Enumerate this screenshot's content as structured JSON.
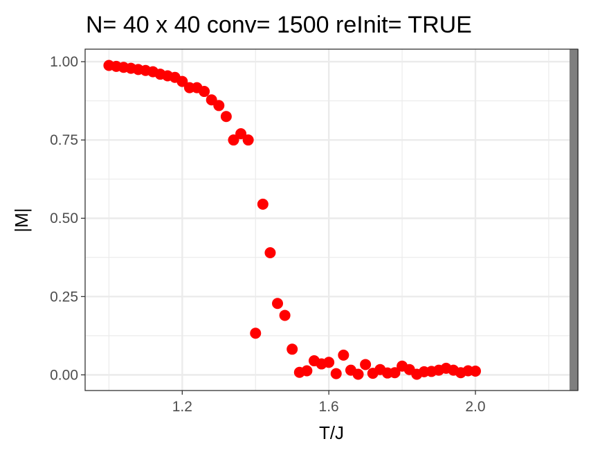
{
  "chart_data": {
    "type": "scatter",
    "title": "N= 40 x 40  conv= 1500  reInit= TRUE",
    "xlabel": "T/J",
    "ylabel": "|M|",
    "xlim": [
      0.935,
      2.2795
    ],
    "ylim": [
      -0.05,
      1.04
    ],
    "xticks": [
      {
        "value": 1.2,
        "label": "1.2"
      },
      {
        "value": 1.6,
        "label": "1.6"
      },
      {
        "value": 2.0,
        "label": "2.0"
      }
    ],
    "x_minor_gridlines": [
      1.0,
      1.4,
      1.8,
      2.2
    ],
    "yticks": [
      {
        "value": 0.0,
        "label": "0.00"
      },
      {
        "value": 0.25,
        "label": "0.25"
      },
      {
        "value": 0.5,
        "label": "0.50"
      },
      {
        "value": 0.75,
        "label": "0.75"
      },
      {
        "value": 1.0,
        "label": "1.00"
      }
    ],
    "y_minor_gridlines": [
      0.125,
      0.375,
      0.625,
      0.875
    ],
    "grid": true,
    "point_color": "#ff0000",
    "vline": {
      "x": 2.269,
      "color": "#7f7f7f"
    },
    "x": [
      1.0,
      1.02,
      1.04,
      1.06,
      1.08,
      1.1,
      1.12,
      1.14,
      1.16,
      1.18,
      1.2,
      1.22,
      1.24,
      1.26,
      1.28,
      1.3,
      1.32,
      1.34,
      1.36,
      1.38,
      1.4,
      1.42,
      1.44,
      1.46,
      1.48,
      1.5,
      1.52,
      1.54,
      1.56,
      1.58,
      1.6,
      1.62,
      1.64,
      1.66,
      1.68,
      1.7,
      1.72,
      1.74,
      1.76,
      1.78,
      1.8,
      1.82,
      1.84,
      1.86,
      1.88,
      1.9,
      1.92,
      1.94,
      1.96,
      1.98,
      2.0
    ],
    "y": [
      0.988,
      0.985,
      0.982,
      0.979,
      0.975,
      0.972,
      0.968,
      0.96,
      0.955,
      0.95,
      0.937,
      0.917,
      0.917,
      0.905,
      0.878,
      0.86,
      0.825,
      0.75,
      0.77,
      0.75,
      0.133,
      0.545,
      0.39,
      0.228,
      0.19,
      0.082,
      0.008,
      0.013,
      0.045,
      0.035,
      0.04,
      0.004,
      0.063,
      0.015,
      0.002,
      0.033,
      0.005,
      0.017,
      0.006,
      0.007,
      0.028,
      0.017,
      0.002,
      0.01,
      0.011,
      0.015,
      0.021,
      0.015,
      0.007,
      0.013,
      0.012
    ]
  }
}
